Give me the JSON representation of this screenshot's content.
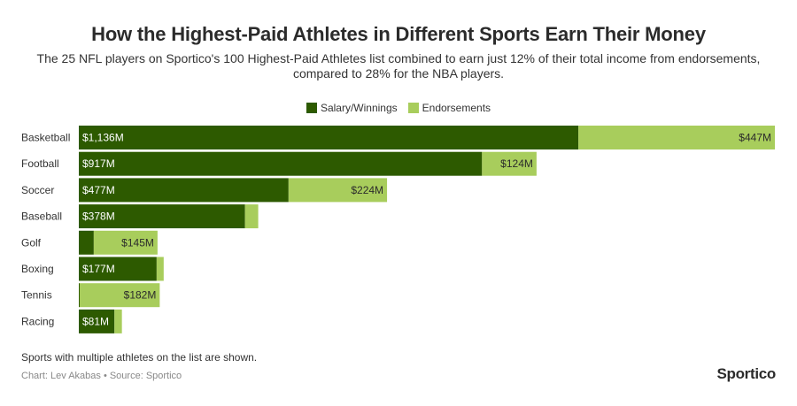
{
  "header": {
    "title": "How the Highest-Paid Athletes in Different Sports Earn Their Money",
    "subtitle": "The 25 NFL players on Sportico's 100 Highest-Paid Athletes list combined to earn just 12% of their total income from endorsements, compared to 28% for the NBA players."
  },
  "legend": {
    "items": [
      {
        "label": "Salary/Winnings",
        "color": "#2d5a00"
      },
      {
        "label": "Endorsements",
        "color": "#a8cd5c"
      }
    ]
  },
  "footer": {
    "note": "Sports with multiple athletes on the list are shown.",
    "credit": "Chart: Lev Akabas • Source: Sportico",
    "logo": "Sportico"
  },
  "chart_data": {
    "type": "bar",
    "orientation": "horizontal",
    "stacked": true,
    "categories": [
      "Basketball",
      "Football",
      "Soccer",
      "Baseball",
      "Golf",
      "Boxing",
      "Tennis",
      "Racing"
    ],
    "series": [
      {
        "name": "Salary/Winnings",
        "color": "#2d5a00",
        "values": [
          1136,
          917,
          477,
          378,
          34,
          177,
          2,
          81
        ],
        "labels": [
          "$1,136M",
          "$917M",
          "$477M",
          "$378M",
          "",
          "$177M",
          "",
          "$81M"
        ]
      },
      {
        "name": "Endorsements",
        "color": "#a8cd5c",
        "values": [
          447,
          124,
          224,
          30,
          145,
          16,
          182,
          17
        ],
        "labels": [
          "$447M",
          "$124M",
          "$224M",
          "",
          "$145M",
          "",
          "$182M",
          ""
        ]
      }
    ],
    "xlim": [
      0,
      1583
    ],
    "grid": false,
    "legend_position": "top-center"
  }
}
